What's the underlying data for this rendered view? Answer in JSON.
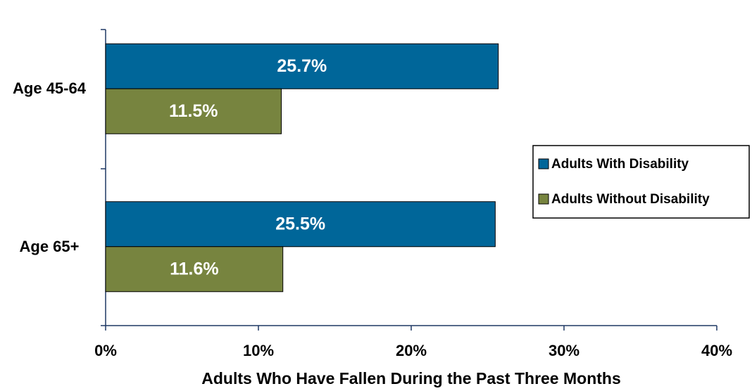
{
  "chart_data": {
    "type": "hbar",
    "x_label": "Adults Who Have Fallen During the Past Three Months",
    "categories": [
      "Age 45-64",
      "Age 65+"
    ],
    "series": [
      {
        "name": "Adults With Disability",
        "color": "#006699",
        "values": [
          25.7,
          25.5
        ],
        "value_labels": [
          "25.7%",
          "25.5%"
        ]
      },
      {
        "name": "Adults Without Disability",
        "color": "#77843f",
        "values": [
          11.5,
          11.6
        ],
        "value_labels": [
          "11.5%",
          "11.6%"
        ]
      }
    ],
    "xlim": [
      0,
      40
    ],
    "xticks": [
      {
        "value": 0,
        "label": "0%"
      },
      {
        "value": 10,
        "label": "10%"
      },
      {
        "value": 20,
        "label": "20%"
      },
      {
        "value": 30,
        "label": "30%"
      },
      {
        "value": 40,
        "label": "40%"
      }
    ],
    "legend": "right"
  }
}
